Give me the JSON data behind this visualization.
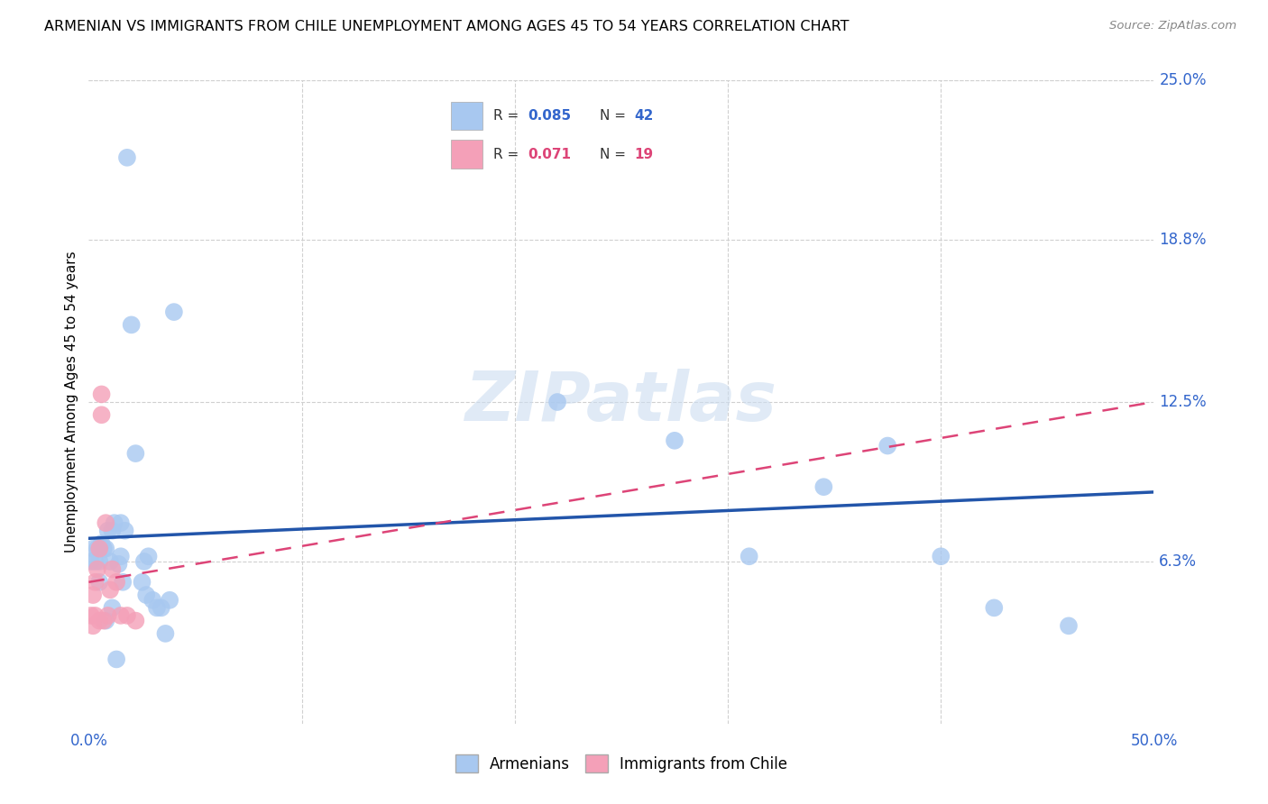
{
  "title": "ARMENIAN VS IMMIGRANTS FROM CHILE UNEMPLOYMENT AMONG AGES 45 TO 54 YEARS CORRELATION CHART",
  "source": "Source: ZipAtlas.com",
  "ylabel": "Unemployment Among Ages 45 to 54 years",
  "xlim": [
    0.0,
    0.5
  ],
  "ylim": [
    0.0,
    0.25
  ],
  "ytick_labels_right": [
    "25.0%",
    "18.8%",
    "12.5%",
    "6.3%"
  ],
  "ytick_vals_right": [
    0.25,
    0.188,
    0.125,
    0.063
  ],
  "armenian_color": "#a8c8f0",
  "chile_color": "#f4a0b8",
  "trendline_armenian_color": "#2255aa",
  "trendline_chile_color": "#dd4477",
  "r_armenian": "0.085",
  "n_armenian": "42",
  "r_chile": "0.071",
  "n_chile": "19",
  "watermark": "ZIPatlas",
  "armenian_x": [
    0.001,
    0.002,
    0.003,
    0.004,
    0.005,
    0.005,
    0.006,
    0.007,
    0.008,
    0.008,
    0.009,
    0.01,
    0.011,
    0.011,
    0.012,
    0.013,
    0.014,
    0.015,
    0.015,
    0.016,
    0.017,
    0.018,
    0.02,
    0.022,
    0.025,
    0.026,
    0.027,
    0.028,
    0.03,
    0.032,
    0.034,
    0.036,
    0.038,
    0.04,
    0.22,
    0.275,
    0.31,
    0.345,
    0.375,
    0.4,
    0.425,
    0.46
  ],
  "armenian_y": [
    0.063,
    0.068,
    0.063,
    0.068,
    0.063,
    0.055,
    0.07,
    0.068,
    0.04,
    0.068,
    0.075,
    0.063,
    0.075,
    0.045,
    0.078,
    0.025,
    0.062,
    0.065,
    0.078,
    0.055,
    0.075,
    0.22,
    0.155,
    0.105,
    0.055,
    0.063,
    0.05,
    0.065,
    0.048,
    0.045,
    0.045,
    0.035,
    0.048,
    0.16,
    0.125,
    0.11,
    0.065,
    0.092,
    0.108,
    0.065,
    0.045,
    0.038
  ],
  "chile_x": [
    0.001,
    0.002,
    0.002,
    0.003,
    0.003,
    0.004,
    0.005,
    0.005,
    0.006,
    0.006,
    0.007,
    0.008,
    0.009,
    0.01,
    0.011,
    0.013,
    0.015,
    0.018,
    0.022
  ],
  "chile_y": [
    0.042,
    0.038,
    0.05,
    0.042,
    0.055,
    0.06,
    0.068,
    0.04,
    0.128,
    0.12,
    0.04,
    0.078,
    0.042,
    0.052,
    0.06,
    0.055,
    0.042,
    0.042,
    0.04
  ],
  "armenian_trendline_x": [
    0.0,
    0.5
  ],
  "armenian_trendline_y": [
    0.072,
    0.09
  ],
  "chile_trendline_x": [
    0.0,
    0.5
  ],
  "chile_trendline_y": [
    0.055,
    0.125
  ]
}
